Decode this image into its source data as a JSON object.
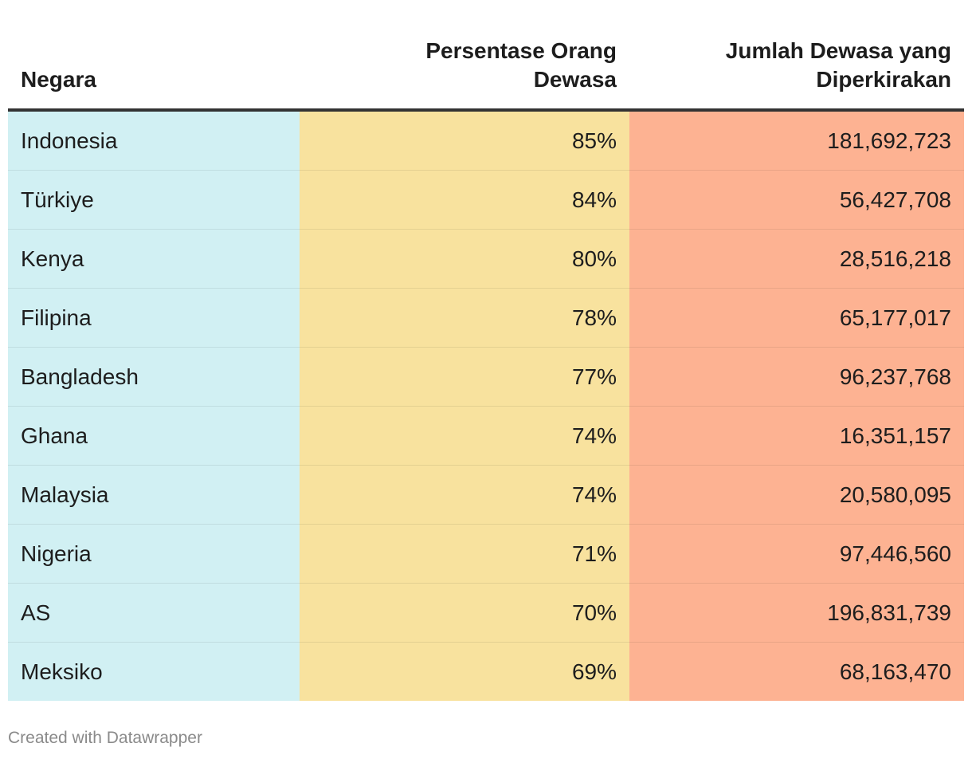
{
  "chart_data": {
    "type": "table",
    "columns": [
      "Negara",
      "Persentase Orang Dewasa",
      "Jumlah Dewasa yang Diperkirakan"
    ],
    "header": {
      "col1": "Negara",
      "col2_line1": "Persentase Orang",
      "col2_line2": "Dewasa",
      "col3_line1": "Jumlah Dewasa yang",
      "col3_line2": "Diperkirakan"
    },
    "rows": [
      {
        "country": "Indonesia",
        "percent": "85%",
        "adults": "181,692,723"
      },
      {
        "country": "Türkiye",
        "percent": "84%",
        "adults": "56,427,708"
      },
      {
        "country": "Kenya",
        "percent": "80%",
        "adults": "28,516,218"
      },
      {
        "country": "Filipina",
        "percent": "78%",
        "adults": "65,177,017"
      },
      {
        "country": "Bangladesh",
        "percent": "77%",
        "adults": "96,237,768"
      },
      {
        "country": "Ghana",
        "percent": "74%",
        "adults": "16,351,157"
      },
      {
        "country": "Malaysia",
        "percent": "74%",
        "adults": "20,580,095"
      },
      {
        "country": "Nigeria",
        "percent": "71%",
        "adults": "97,446,560"
      },
      {
        "country": "AS",
        "percent": "70%",
        "adults": "196,831,739"
      },
      {
        "country": "Meksiko",
        "percent": "69%",
        "adults": "68,163,470"
      }
    ],
    "colors": {
      "col1_bg": "#d1f0f3",
      "col2_bg": "#f8e29e",
      "col3_bg": "#fdb292"
    }
  },
  "footer": {
    "credit": "Created with Datawrapper"
  }
}
